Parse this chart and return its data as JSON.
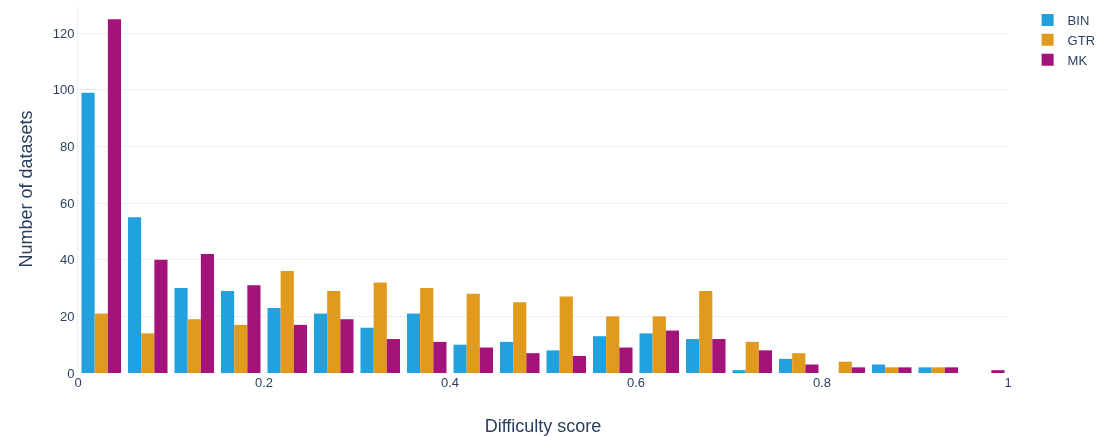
{
  "chart_data": {
    "type": "histogram",
    "xlabel": "Difficulty score",
    "ylabel": "Number of datasets",
    "bins": [
      0,
      0.05,
      0.1,
      0.15,
      0.2,
      0.25,
      0.3,
      0.35,
      0.4,
      0.45,
      0.5,
      0.55,
      0.6,
      0.65,
      0.7,
      0.75,
      0.8,
      0.85,
      0.9,
      0.95,
      1
    ],
    "series": [
      {
        "name": "BIN",
        "color": "#23a1df",
        "values": [
          99,
          55,
          30,
          29,
          23,
          21,
          16,
          21,
          10,
          11,
          8,
          13,
          14,
          12,
          1,
          5,
          0,
          3,
          2,
          0
        ]
      },
      {
        "name": "GTR",
        "color": "#e09b1f",
        "values": [
          21,
          14,
          19,
          17,
          36,
          29,
          32,
          30,
          28,
          25,
          27,
          20,
          20,
          29,
          11,
          7,
          4,
          2,
          2,
          0
        ]
      },
      {
        "name": "MK",
        "color": "#a3137a",
        "values": [
          125,
          40,
          42,
          31,
          17,
          19,
          12,
          11,
          9,
          7,
          6,
          9,
          15,
          12,
          8,
          3,
          2,
          2,
          2,
          1
        ]
      }
    ],
    "xlim": [
      0,
      1
    ],
    "xticks": [
      0,
      0.2,
      0.4,
      0.6,
      0.8,
      1
    ],
    "ylim": [
      0,
      130
    ],
    "yticks": [
      0,
      20,
      40,
      60,
      80,
      100,
      120
    ],
    "grid": "y",
    "legend": "top right"
  }
}
